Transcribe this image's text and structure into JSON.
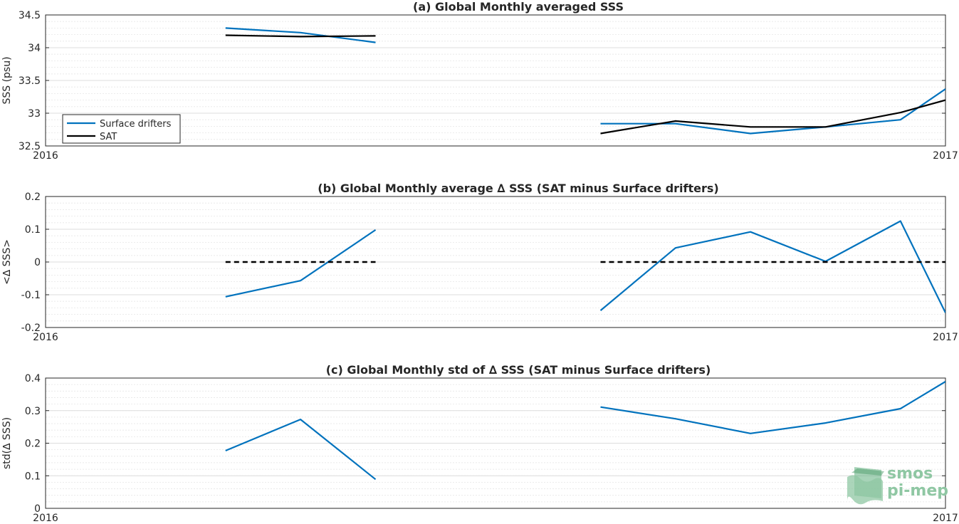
{
  "chart_data": [
    {
      "type": "line",
      "title": "(a) Global Monthly averaged SSS",
      "ylabel": "SSS (psu)",
      "xlim": [
        0,
        12
      ],
      "x_tick_labels": [
        "2016",
        "2017"
      ],
      "ylim": [
        32.5,
        34.5
      ],
      "yticks": [
        32.5,
        33,
        33.5,
        34,
        34.5
      ],
      "ytick_labels": [
        "32.5",
        "33",
        "33.5",
        "34",
        "34.5"
      ],
      "grid": true,
      "legend_position": "bottom-left",
      "series": [
        {
          "name": "Surface drifters",
          "color": "#0072bd",
          "segments": [
            {
              "x": [
                2.4,
                3.4,
                4.4
              ],
              "y": [
                34.3,
                34.23,
                34.08
              ]
            },
            {
              "x": [
                7.4,
                8.4,
                9.4,
                10.4,
                11.4,
                12.0
              ],
              "y": [
                32.84,
                32.84,
                32.69,
                32.79,
                32.9,
                33.37
              ]
            }
          ]
        },
        {
          "name": "SAT",
          "color": "#000000",
          "segments": [
            {
              "x": [
                2.4,
                3.4,
                4.4
              ],
              "y": [
                34.19,
                34.17,
                34.18
              ]
            },
            {
              "x": [
                7.4,
                8.4,
                9.4,
                10.4,
                11.4,
                12.0
              ],
              "y": [
                32.69,
                32.88,
                32.79,
                32.79,
                33.01,
                33.2
              ]
            }
          ]
        }
      ]
    },
    {
      "type": "line",
      "title": "(b) Global Monthly average ∆ SSS (SAT minus Surface drifters)",
      "ylabel": "<∆ SSS>",
      "xlim": [
        0,
        12
      ],
      "x_tick_labels": [
        "2016",
        "2017"
      ],
      "ylim": [
        -0.2,
        0.2
      ],
      "yticks": [
        -0.2,
        -0.1,
        0,
        0.1,
        0.2
      ],
      "ytick_labels": [
        "-0.2",
        "-0.1",
        "0",
        "0.1",
        "0.2"
      ],
      "grid": true,
      "series": [
        {
          "color": "#0072bd",
          "segments": [
            {
              "x": [
                2.4,
                3.4,
                4.4
              ],
              "y": [
                -0.106,
                -0.057,
                0.098
              ]
            },
            {
              "x": [
                7.4,
                8.4,
                9.4,
                10.4,
                11.4,
                12.0
              ],
              "y": [
                -0.148,
                0.043,
                0.092,
                0.002,
                0.125,
                -0.155
              ]
            }
          ]
        },
        {
          "color": "#000000",
          "dashed": true,
          "segments": [
            {
              "x": [
                2.4,
                4.4
              ],
              "y": [
                0,
                0
              ]
            },
            {
              "x": [
                7.4,
                12.0
              ],
              "y": [
                0,
                0
              ]
            }
          ]
        }
      ]
    },
    {
      "type": "line",
      "title": "(c) Global Monthly std of ∆ SSS (SAT minus Surface drifters)",
      "ylabel": "std(∆ SSS)",
      "xlim": [
        0,
        12
      ],
      "x_tick_labels": [
        "2016",
        "2017"
      ],
      "ylim": [
        0,
        0.4
      ],
      "yticks": [
        0,
        0.1,
        0.2,
        0.3,
        0.4
      ],
      "ytick_labels": [
        "0",
        "0.1",
        "0.2",
        "0.3",
        "0.4"
      ],
      "grid": true,
      "series": [
        {
          "color": "#0072bd",
          "segments": [
            {
              "x": [
                2.4,
                3.4,
                4.4
              ],
              "y": [
                0.177,
                0.273,
                0.089
              ]
            },
            {
              "x": [
                7.4,
                8.4,
                9.4,
                10.4,
                11.4,
                12.0
              ],
              "y": [
                0.311,
                0.275,
                0.23,
                0.262,
                0.306,
                0.389
              ]
            }
          ]
        }
      ]
    }
  ],
  "logo": {
    "line1": "smos",
    "line2": "pi-mep",
    "icon": "waves-cube-icon",
    "color": "#8fc7a3"
  }
}
